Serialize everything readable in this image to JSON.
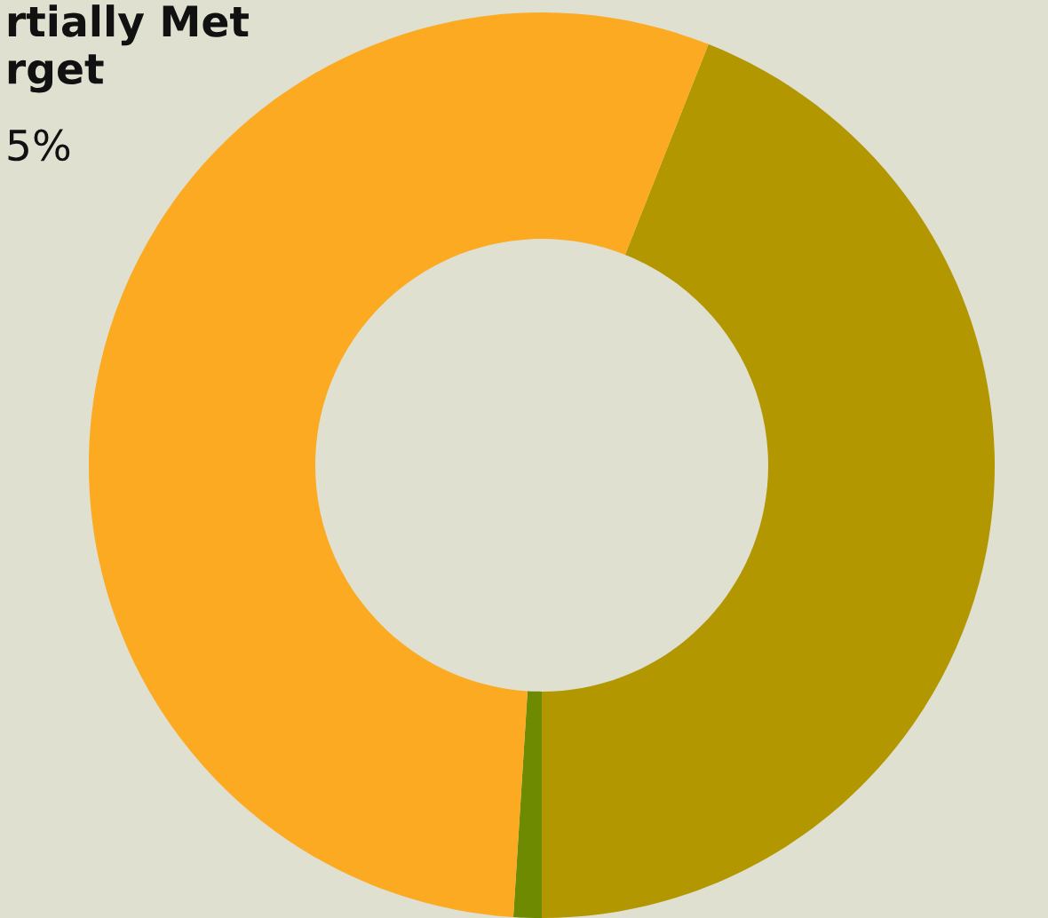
{
  "chart_data": {
    "type": "donut",
    "categories": [
      null,
      null,
      null
    ],
    "values": [
      44,
      1,
      55
    ],
    "colors": [
      "#b39700",
      "#6e8a00",
      "#fbaa22"
    ],
    "annotations": [
      "rtially Met\nrget",
      "5%"
    ]
  }
}
